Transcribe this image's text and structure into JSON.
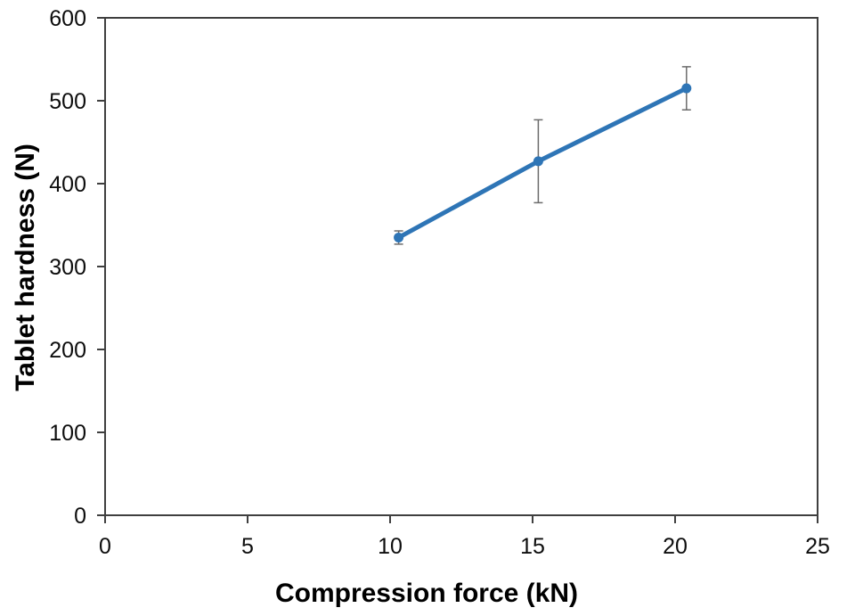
{
  "chart_data": {
    "type": "line",
    "title": "",
    "xlabel": "Compression force (kN)",
    "ylabel": "Tablet hardness (N)",
    "x": [
      10.3,
      15.2,
      20.4
    ],
    "series": [
      {
        "name": "Tablet hardness",
        "values": [
          335,
          427,
          515
        ],
        "error_bars": [
          8,
          50,
          26
        ]
      }
    ],
    "xlim": [
      0,
      25
    ],
    "ylim": [
      0,
      600
    ],
    "xticks": [
      0,
      5,
      10,
      15,
      20,
      25
    ],
    "yticks": [
      0,
      100,
      200,
      300,
      400,
      500,
      600
    ],
    "grid": false,
    "legend": false,
    "marker": "circle",
    "colors": {
      "series": "#2E75B6",
      "error_bar": "#6B6B6B",
      "axis": "#3F3F3F",
      "tick_label": "#0D0D0D",
      "background": "#FFFFFF"
    }
  }
}
